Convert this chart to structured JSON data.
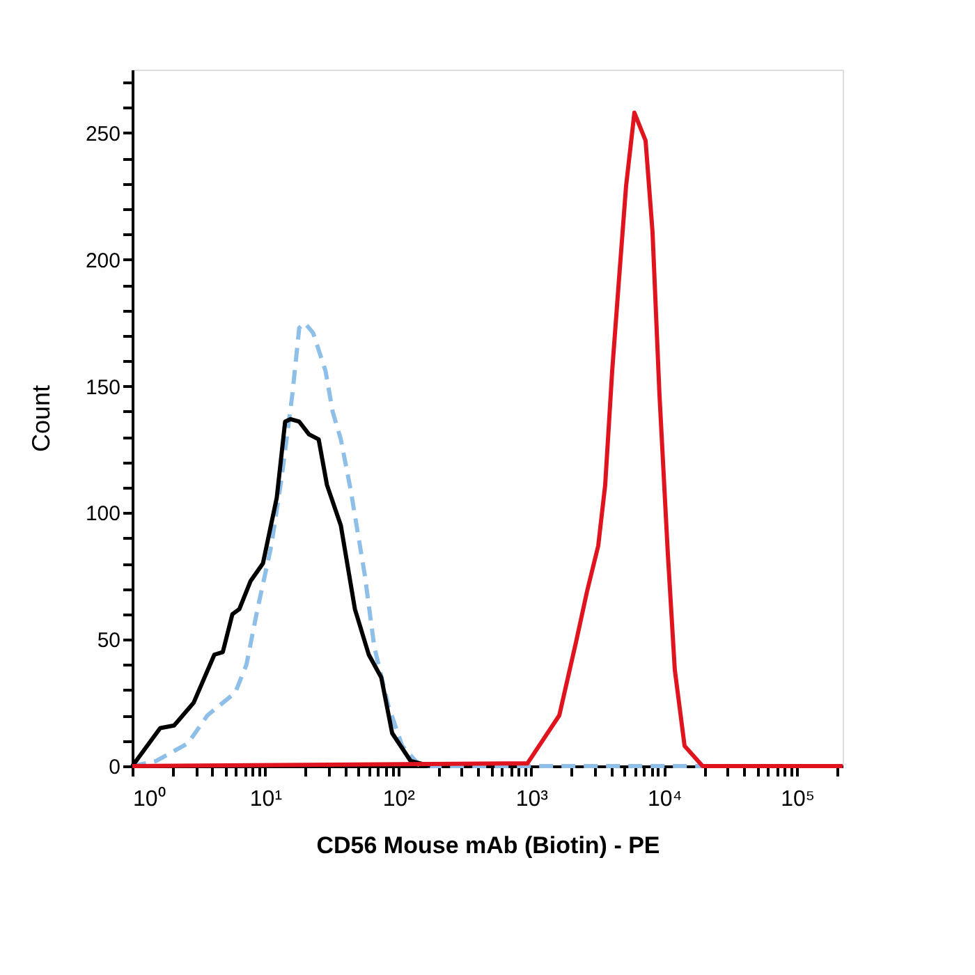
{
  "chart_data": {
    "type": "line",
    "xlabel": "CD56 Mouse mAb (Biotin) - PE",
    "ylabel": "Count",
    "log": "x",
    "grid": false,
    "marker": "none",
    "xlim": [
      1,
      220000
    ],
    "ylim": [
      0,
      275
    ],
    "xticks": [
      {
        "value": 1,
        "label": "10⁰"
      },
      {
        "value": 2,
        "label": null
      },
      {
        "value": 3,
        "label": null
      },
      {
        "value": 4,
        "label": null
      },
      {
        "value": 5,
        "label": null
      },
      {
        "value": 6,
        "label": null
      },
      {
        "value": 7,
        "label": null
      },
      {
        "value": 8,
        "label": null
      },
      {
        "value": 9,
        "label": null
      },
      {
        "value": 10,
        "label": "10¹"
      },
      {
        "value": 20,
        "label": null
      },
      {
        "value": 30,
        "label": null
      },
      {
        "value": 40,
        "label": null
      },
      {
        "value": 50,
        "label": null
      },
      {
        "value": 60,
        "label": null
      },
      {
        "value": 70,
        "label": null
      },
      {
        "value": 80,
        "label": null
      },
      {
        "value": 90,
        "label": null
      },
      {
        "value": 100,
        "label": "10²"
      },
      {
        "value": 200,
        "label": null
      },
      {
        "value": 300,
        "label": null
      },
      {
        "value": 400,
        "label": null
      },
      {
        "value": 500,
        "label": null
      },
      {
        "value": 600,
        "label": null
      },
      {
        "value": 700,
        "label": null
      },
      {
        "value": 800,
        "label": null
      },
      {
        "value": 900,
        "label": null
      },
      {
        "value": 1000,
        "label": "10³"
      },
      {
        "value": 2000,
        "label": null
      },
      {
        "value": 3000,
        "label": null
      },
      {
        "value": 4000,
        "label": null
      },
      {
        "value": 5000,
        "label": null
      },
      {
        "value": 6000,
        "label": null
      },
      {
        "value": 7000,
        "label": null
      },
      {
        "value": 8000,
        "label": null
      },
      {
        "value": 9000,
        "label": null
      },
      {
        "value": 10000,
        "label": "10⁴"
      },
      {
        "value": 20000,
        "label": null
      },
      {
        "value": 30000,
        "label": null
      },
      {
        "value": 40000,
        "label": null
      },
      {
        "value": 50000,
        "label": null
      },
      {
        "value": 60000,
        "label": null
      },
      {
        "value": 70000,
        "label": null
      },
      {
        "value": 80000,
        "label": null
      },
      {
        "value": 90000,
        "label": null
      },
      {
        "value": 100000,
        "label": "10⁵"
      },
      {
        "value": 200000,
        "label": null
      }
    ],
    "yticks": [
      0,
      {
        "value": 10,
        "label": null
      },
      {
        "value": 20,
        "label": null
      },
      {
        "value": 30,
        "label": null
      },
      {
        "value": 40,
        "label": null
      },
      50,
      {
        "value": 60,
        "label": null
      },
      {
        "value": 70,
        "label": null
      },
      {
        "value": 80,
        "label": null
      },
      {
        "value": 90,
        "label": null
      },
      100,
      {
        "value": 110,
        "label": null
      },
      {
        "value": 120,
        "label": null
      },
      {
        "value": 130,
        "label": null
      },
      {
        "value": 140,
        "label": null
      },
      150,
      {
        "value": 160,
        "label": null
      },
      {
        "value": 170,
        "label": null
      },
      {
        "value": 180,
        "label": null
      },
      {
        "value": 190,
        "label": null
      },
      200,
      {
        "value": 210,
        "label": null
      },
      {
        "value": 220,
        "label": null
      },
      {
        "value": 230,
        "label": null
      },
      {
        "value": 240,
        "label": null
      },
      250,
      {
        "value": 260,
        "label": null
      },
      {
        "value": 270,
        "label": null
      }
    ],
    "series": [
      {
        "color": "#8dbfe8",
        "line_style": "dashed",
        "x": [
          1,
          1.51,
          2.62,
          3.67,
          5.94,
          7.21,
          8.74,
          11.1,
          13.2,
          16,
          18,
          19.8,
          22.9,
          28.4,
          32.1,
          37,
          43.9,
          55.8,
          66.1,
          84.1,
          107,
          146,
          20000
        ],
        "values": [
          0,
          2,
          9,
          20,
          29,
          40,
          62,
          87,
          113,
          147,
          173,
          175,
          171,
          156,
          140,
          129,
          109,
          76,
          47,
          24,
          8,
          0,
          0
        ]
      },
      {
        "color": "#000000",
        "line_style": "solid",
        "x": [
          1,
          1.62,
          2.06,
          2.89,
          4.14,
          4.79,
          5.66,
          6.38,
          7.74,
          9.6,
          12.2,
          14.1,
          15.5,
          18,
          21.3,
          25.2,
          29.1,
          37,
          47.2,
          60,
          74.5,
          90,
          124,
          174
        ],
        "values": [
          0,
          15,
          16,
          25,
          44,
          45,
          60,
          62,
          73,
          80,
          106,
          136,
          137,
          136,
          131,
          129,
          111,
          95,
          62,
          44,
          35,
          13,
          2,
          0
        ]
      },
      {
        "color": "#e0141e",
        "line_style": "solid",
        "x": [
          1,
          621,
          935,
          1626,
          2173,
          2630,
          3192,
          3600,
          4063,
          4585,
          5168,
          5970,
          7245,
          8170,
          9210,
          10650,
          12020,
          14230,
          19440,
          220000
        ],
        "values": [
          0,
          1,
          1,
          20,
          49,
          69,
          87,
          111,
          156,
          193,
          229,
          258,
          247,
          211,
          147,
          84,
          38,
          8,
          0,
          0
        ]
      }
    ]
  }
}
